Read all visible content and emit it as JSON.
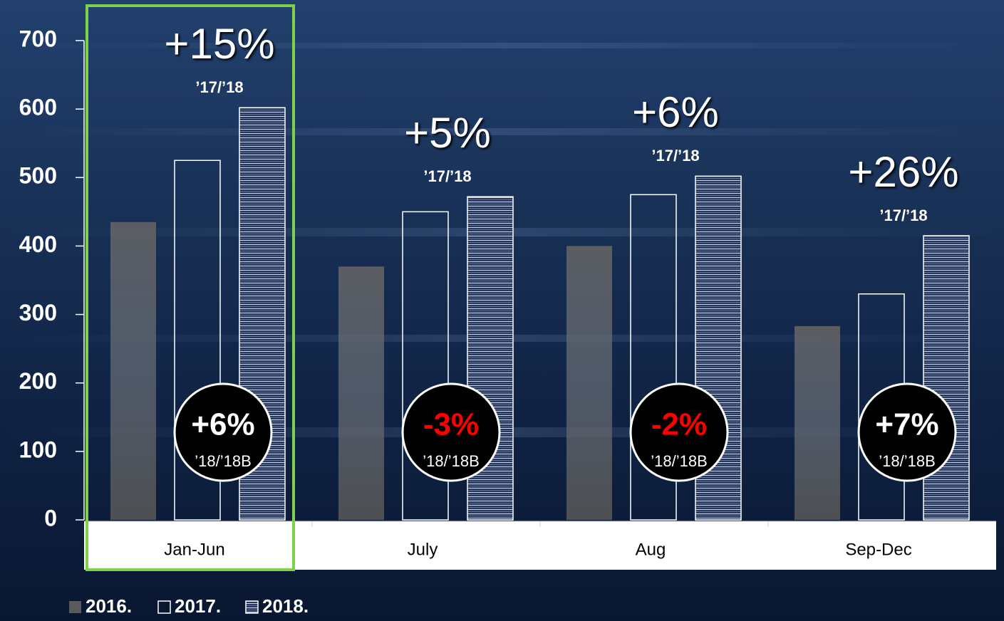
{
  "chart_data": {
    "type": "bar",
    "categories": [
      "Jan-Jun",
      "July",
      "Aug",
      "Sep-Dec"
    ],
    "series": [
      {
        "name": "2016.",
        "color": "#5a5a5a",
        "style": "solid",
        "values": [
          435,
          370,
          400,
          283
        ]
      },
      {
        "name": "2017.",
        "color": "#ffffff",
        "style": "outline",
        "values": [
          525,
          450,
          475,
          330
        ]
      },
      {
        "name": "2018.",
        "color": "#ffffff",
        "style": "hatched",
        "values": [
          602,
          472,
          502,
          415
        ]
      }
    ],
    "ylim": [
      0,
      700
    ],
    "yticks": [
      0,
      100,
      200,
      300,
      400,
      500,
      600,
      700
    ],
    "annotations": [
      {
        "change": "+15%",
        "basis": "’17/’18",
        "badge": "+6%",
        "badge_basis": "’18/’18B",
        "badge_color": "#ffffff"
      },
      {
        "change": "+5%",
        "basis": "’17/’18",
        "badge": "-3%",
        "badge_basis": "’18/’18B",
        "badge_color": "#ff0000"
      },
      {
        "change": "+6%",
        "basis": "’17/’18",
        "badge": "-2%",
        "badge_basis": "’18/’18B",
        "badge_color": "#ff0000"
      },
      {
        "change": "+26%",
        "basis": "’17/’18",
        "badge": "+7%",
        "badge_basis": "’18/’18B",
        "badge_color": "#ffffff"
      }
    ],
    "highlight_color": "#7fd14a"
  }
}
